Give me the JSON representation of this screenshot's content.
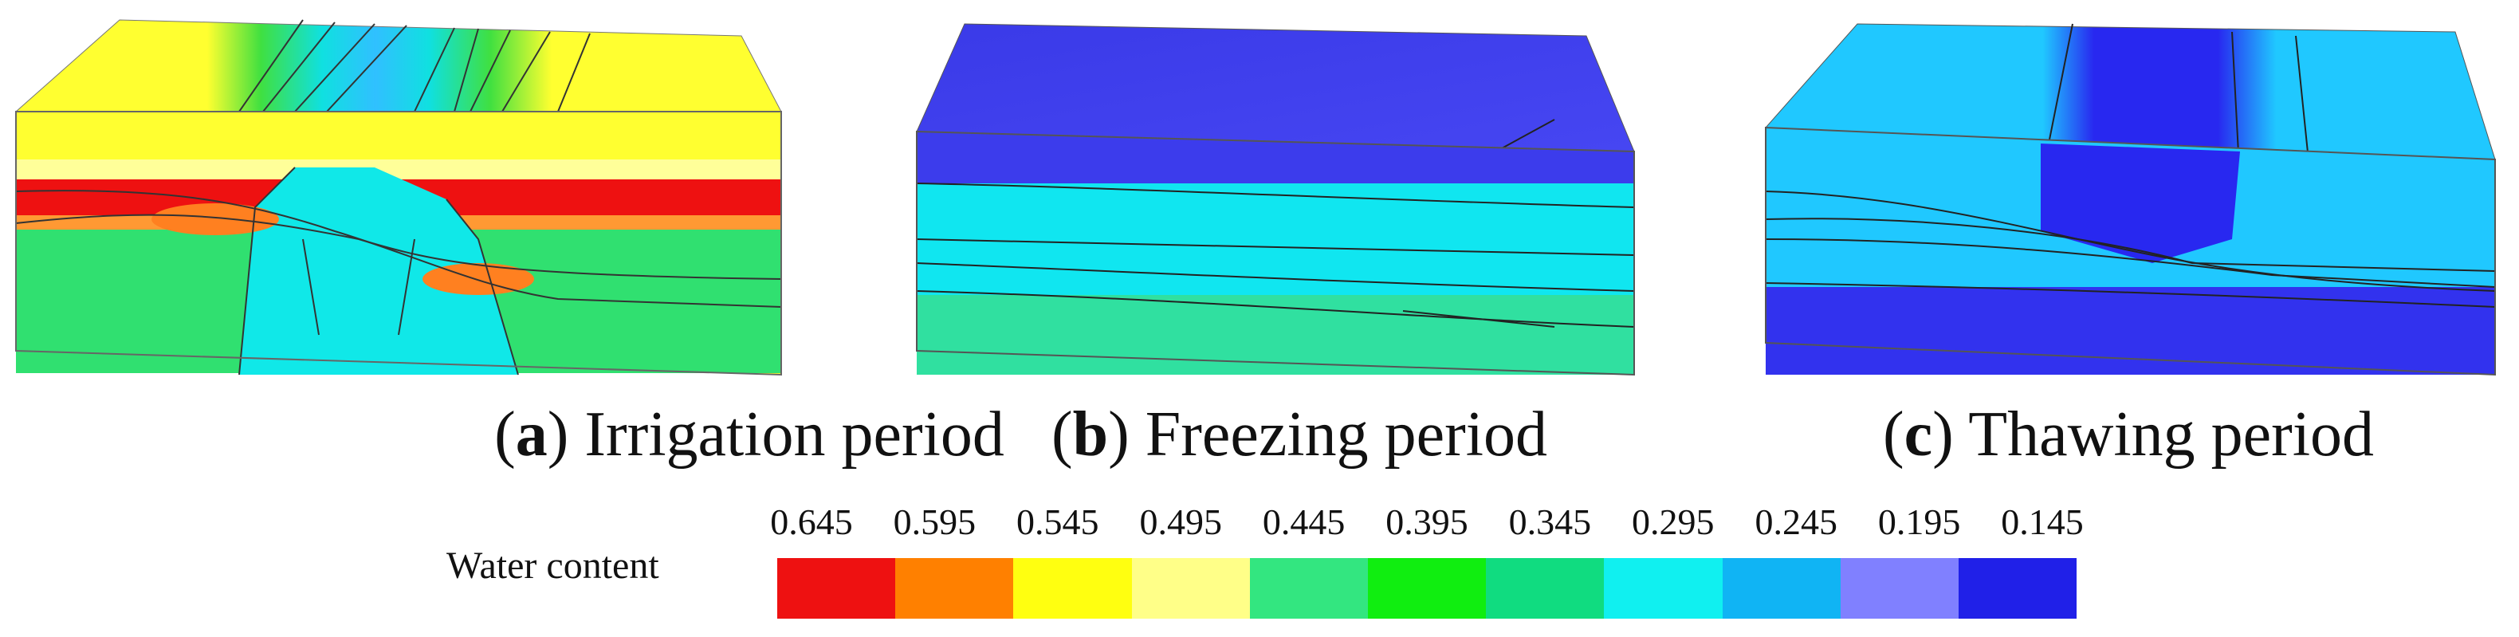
{
  "panels": [
    {
      "letter": "a",
      "label": "Irrigation period"
    },
    {
      "letter": "b",
      "label": "Freezing period"
    },
    {
      "letter": "c",
      "label": "Thawing period"
    }
  ],
  "legend": {
    "title": "Water content",
    "values": [
      "0.645",
      "0.595",
      "0.545",
      "0.495",
      "0.445",
      "0.395",
      "0.345",
      "0.295",
      "0.245",
      "0.195",
      "0.145"
    ],
    "colors": [
      "#ee1111",
      "#ff8000",
      "#ffff10",
      "#ffff88",
      "#33e680",
      "#10ee10",
      "#10dc80",
      "#10f0f0",
      "#10b4f4",
      "#8080ff",
      "#2020e8"
    ]
  }
}
